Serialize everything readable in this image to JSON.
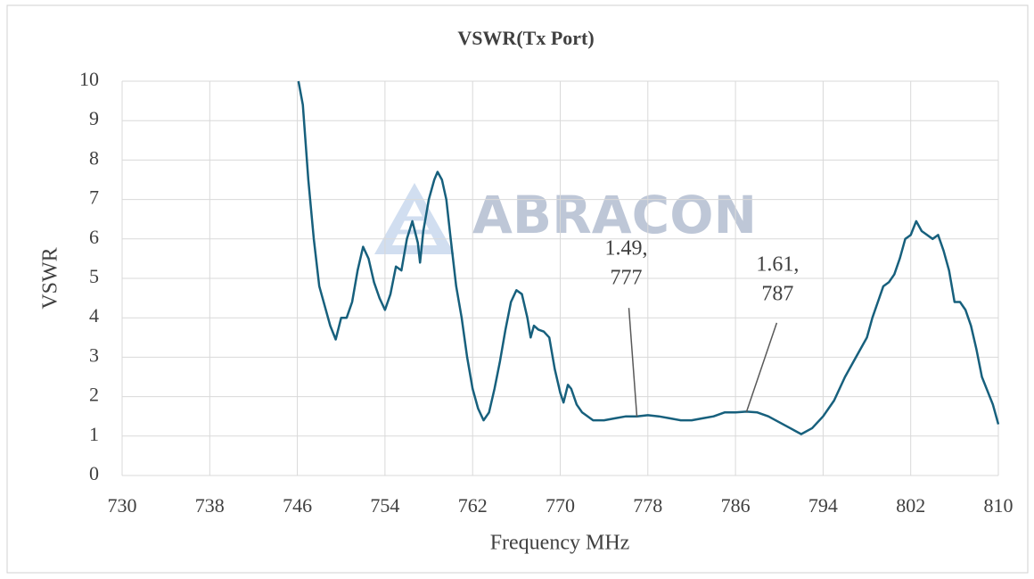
{
  "chart_data": {
    "type": "line",
    "title": "VSWR(Tx Port)",
    "xlabel": "Frequency MHz",
    "ylabel": "VSWR",
    "watermark": "ABRACON",
    "color": "#17607d",
    "grid": true,
    "xlim": [
      730,
      810
    ],
    "xticks": [
      730,
      738,
      746,
      754,
      762,
      770,
      778,
      786,
      794,
      802,
      810
    ],
    "ylim": [
      0,
      10
    ],
    "yticks": [
      0,
      1,
      2,
      3,
      4,
      5,
      6,
      7,
      8,
      9,
      10
    ],
    "x": [
      746.1,
      746.5,
      747,
      747.5,
      748,
      748.5,
      749,
      749.5,
      750,
      750.5,
      751,
      751.5,
      752,
      752.5,
      753,
      753.5,
      754,
      754.5,
      755,
      755.5,
      756,
      756.5,
      757,
      757.2,
      757.5,
      758,
      758.5,
      758.8,
      759.2,
      759.6,
      760,
      760.5,
      761,
      761.5,
      762,
      762.5,
      763,
      763.5,
      764,
      764.5,
      765,
      765.5,
      766,
      766.5,
      767,
      767.3,
      767.6,
      768,
      768.5,
      769,
      769.5,
      770,
      770.3,
      770.7,
      771,
      771.5,
      772,
      773,
      774,
      775,
      776,
      777,
      778,
      779,
      780,
      781,
      782,
      783,
      784,
      785,
      786,
      787,
      788,
      789,
      790,
      791,
      792,
      793,
      794,
      795,
      796,
      797,
      798,
      798.5,
      799,
      799.5,
      800,
      800.5,
      801,
      801.5,
      802,
      802.5,
      803,
      803.5,
      804,
      804.5,
      805,
      805.5,
      806,
      806.5,
      807,
      807.5,
      808,
      808.5,
      809,
      809.5,
      810
    ],
    "values": [
      10,
      9.4,
      7.5,
      6.0,
      4.8,
      4.3,
      3.8,
      3.45,
      4.0,
      4.0,
      4.4,
      5.2,
      5.8,
      5.5,
      4.9,
      4.5,
      4.2,
      4.6,
      5.3,
      5.2,
      6.0,
      6.45,
      5.9,
      5.4,
      6.2,
      7.0,
      7.5,
      7.7,
      7.5,
      7.0,
      6.0,
      4.8,
      4.0,
      3.0,
      2.2,
      1.7,
      1.4,
      1.6,
      2.2,
      2.9,
      3.7,
      4.4,
      4.7,
      4.6,
      4.0,
      3.5,
      3.8,
      3.7,
      3.65,
      3.5,
      2.7,
      2.1,
      1.85,
      2.3,
      2.2,
      1.8,
      1.6,
      1.4,
      1.4,
      1.45,
      1.5,
      1.5,
      1.53,
      1.5,
      1.45,
      1.4,
      1.4,
      1.45,
      1.5,
      1.6,
      1.6,
      1.62,
      1.6,
      1.5,
      1.35,
      1.2,
      1.05,
      1.2,
      1.5,
      1.9,
      2.5,
      3.0,
      3.5,
      4.0,
      4.4,
      4.8,
      4.9,
      5.1,
      5.5,
      6.0,
      6.1,
      6.45,
      6.2,
      6.1,
      6.0,
      6.1,
      5.7,
      5.2,
      4.4,
      4.4,
      4.2,
      3.8,
      3.2,
      2.5,
      2.15,
      1.8,
      1.3
    ],
    "annotations": [
      {
        "x": 777,
        "y": 1.49,
        "text": [
          "1.49,",
          "777"
        ]
      },
      {
        "x": 787,
        "y": 1.61,
        "text": [
          "1.61,",
          "787"
        ]
      }
    ]
  }
}
